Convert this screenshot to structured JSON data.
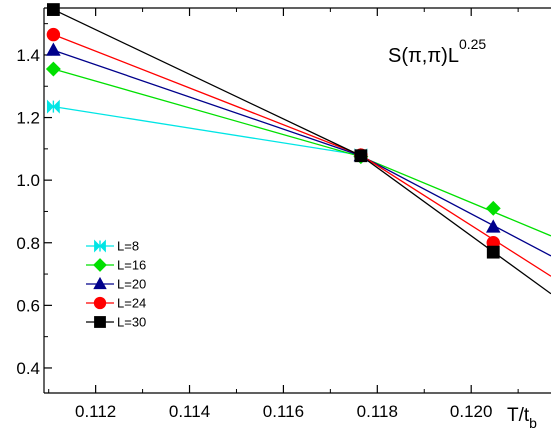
{
  "chart_data": {
    "type": "line",
    "title": "",
    "annotation": "S(π,π)L",
    "annotation_exponent": "0.25",
    "xlabel": "T/t",
    "xlabel_subscript": "b",
    "ylabel": "",
    "xlim": [
      0.1109,
      0.1217
    ],
    "ylim": [
      0.32,
      1.55
    ],
    "x_ticks": [
      0.112,
      0.114,
      0.116,
      0.118,
      0.12
    ],
    "x_tick_labels": [
      "0.112",
      "0.114",
      "0.116",
      "0.118",
      "0.120"
    ],
    "y_ticks": [
      0.4,
      0.6,
      0.8,
      1.0,
      1.2,
      1.4
    ],
    "y_tick_labels": [
      "0.4",
      "0.6",
      "0.8",
      "1.0",
      "1.2",
      "1.4"
    ],
    "grid": false,
    "legend_position": "middle-left",
    "series": [
      {
        "name": "L=8",
        "color": "#00e5e5",
        "marker": "bowtie",
        "x": [
          0.1111,
          0.11765
        ],
        "y": [
          1.235,
          1.08
        ],
        "line_x": [
          0.1111,
          0.11765
        ],
        "line_y": [
          1.235,
          1.08
        ]
      },
      {
        "name": "L=16",
        "color": "#00e000",
        "marker": "diamond",
        "x": [
          0.1111,
          0.11765,
          0.12047
        ],
        "y": [
          1.355,
          1.075,
          0.91
        ],
        "line_x": [
          0.1111,
          0.11765,
          0.1217
        ],
        "line_y": [
          1.355,
          1.075,
          0.822
        ]
      },
      {
        "name": "L=20",
        "color": "#00008b",
        "marker": "triangle",
        "x": [
          0.1111,
          0.11765,
          0.12047
        ],
        "y": [
          1.415,
          1.078,
          0.85
        ],
        "line_x": [
          0.1111,
          0.11765,
          0.1217
        ],
        "line_y": [
          1.415,
          1.078,
          0.758
        ]
      },
      {
        "name": "L=24",
        "color": "#ff0000",
        "marker": "circle",
        "x": [
          0.1111,
          0.11765,
          0.12047
        ],
        "y": [
          1.465,
          1.08,
          0.8
        ],
        "line_x": [
          0.1111,
          0.11765,
          0.1217
        ],
        "line_y": [
          1.465,
          1.08,
          0.693
        ]
      },
      {
        "name": "L=30",
        "color": "#000000",
        "marker": "square",
        "x": [
          0.1111,
          0.11765,
          0.12047
        ],
        "y": [
          1.545,
          1.078,
          0.77
        ],
        "line_x": [
          0.1111,
          0.11765,
          0.1217
        ],
        "line_y": [
          1.545,
          1.078,
          0.637
        ]
      }
    ]
  }
}
